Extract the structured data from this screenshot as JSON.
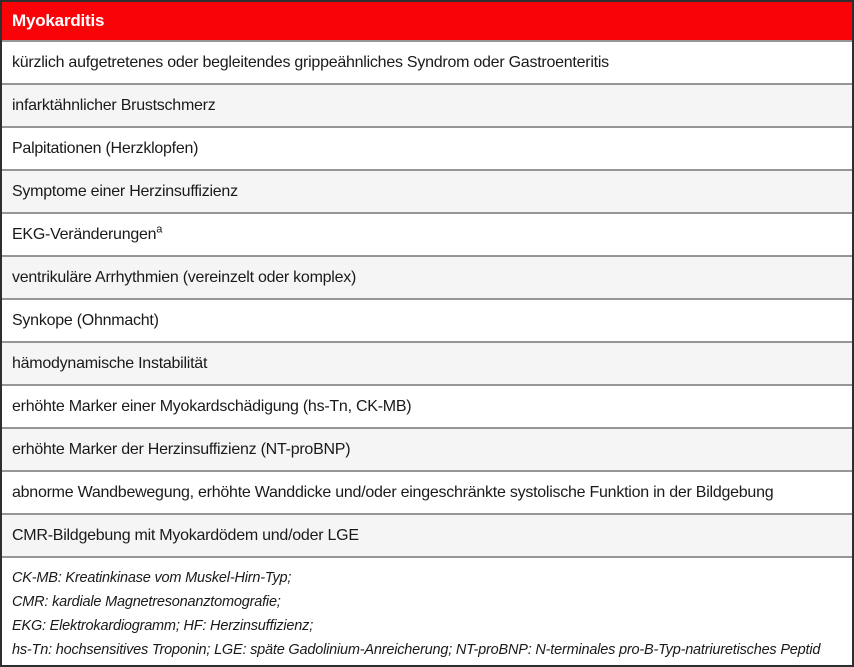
{
  "table": {
    "header": "Myokarditis",
    "rows": [
      {
        "text": "kürzlich aufgetretenes oder begleitendes grippeähnliches Syndrom oder Gastroenteritis"
      },
      {
        "text": "infarktähnlicher Brustschmerz"
      },
      {
        "text": "Palpitationen (Herzklopfen)"
      },
      {
        "text": "Symptome einer Herzinsuffizienz"
      },
      {
        "text": "EKG-Veränderungen",
        "sup": "a"
      },
      {
        "text": "ventrikuläre Arrhythmien (vereinzelt oder komplex)"
      },
      {
        "text": "Synkope (Ohnmacht)"
      },
      {
        "text": "hämodynamische Instabilität"
      },
      {
        "text": "erhöhte Marker einer Myokardschädigung (hs-Tn, CK-MB)"
      },
      {
        "text": "erhöhte Marker der Herzinsuffizienz (NT-proBNP)"
      },
      {
        "text": "abnorme Wandbewegung, erhöhte Wanddicke und/oder eingeschränkte systolische Funktion in der Bildgebung"
      },
      {
        "text": "CMR-Bildgebung mit Myokardödem und/oder LGE"
      }
    ],
    "footnotes": [
      "CK-MB: Kreatinkinase vom Muskel-Hirn-Typ;",
      "CMR: kardiale Magnetresonanztomografie;",
      "EKG: Elektrokardiogramm; HF: Herzinsuffizienz;",
      "hs-Tn: hochsensitives Troponin; LGE: späte Gadolinium-Anreicherung; NT-proBNP: N-terminales pro-B-Typ-natriuretisches Peptid"
    ],
    "colors": {
      "header_bg": "#fa0308",
      "header_text": "#ffffff",
      "row_bg": "#ffffff",
      "row_alt_bg": "#f5f5f5",
      "separator": "#969696",
      "outer_border": "#2e2e2e",
      "text": "#1a1a1a"
    }
  }
}
